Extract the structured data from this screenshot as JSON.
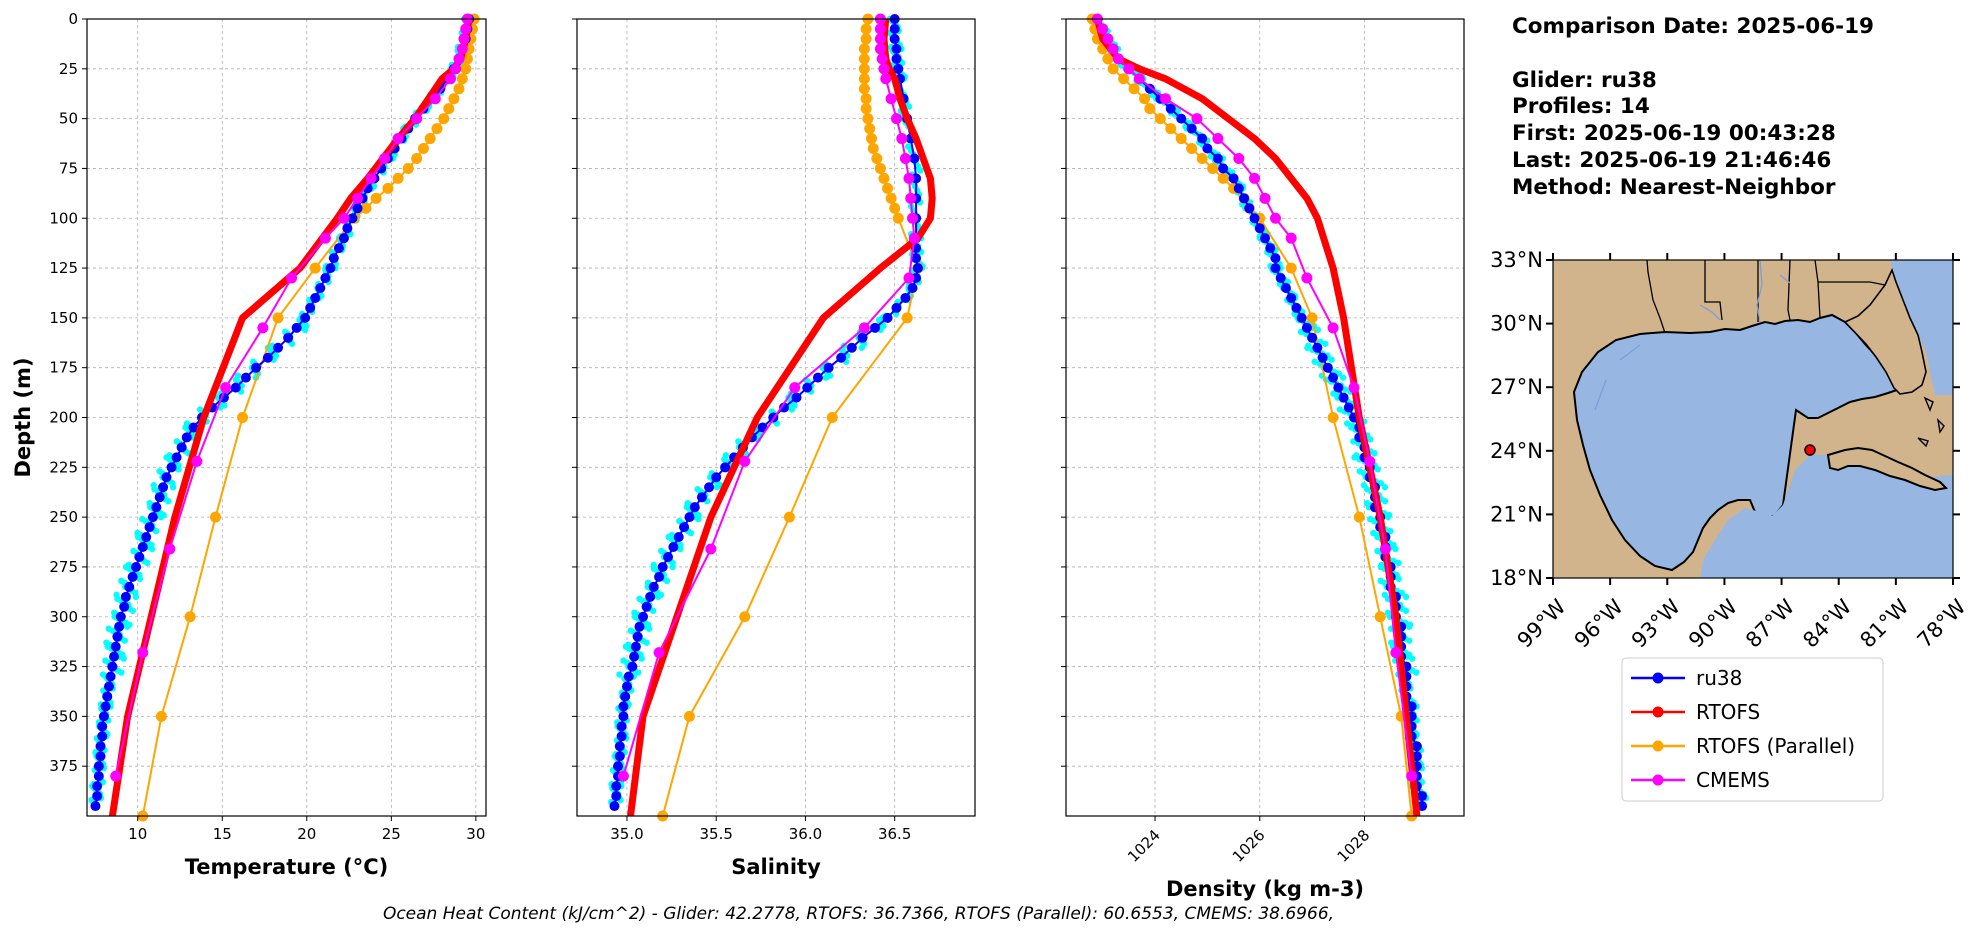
{
  "info": {
    "comparison_date": "Comparison Date: 2025-06-19",
    "glider": "Glider: ru38",
    "profiles": "Profiles: 14",
    "first": "First: 2025-06-19 00:43:28",
    "last": "Last: 2025-06-19 21:46:46",
    "method": "Method: Nearest-Neighbor"
  },
  "footer": "Ocean Heat Content (kJ/cm^2) - Glider: 42.2778,  RTOFS: 36.7366,  RTOFS (Parallel): 60.6553,  CMEMS: 38.6966,",
  "legend": [
    "ru38",
    "RTOFS",
    "RTOFS (Parallel)",
    "CMEMS"
  ],
  "colors": {
    "ru38": "#0000ff",
    "ru38_scatter": "#00ffff",
    "RTOFS": "#ff0000",
    "RTOFS_Parallel": "#ffa500",
    "CMEMS": "#ff00ff",
    "land": "#d2b48c",
    "ocean": "#97b6e1",
    "marker": "#ff0000"
  },
  "chart_data": [
    {
      "type": "line",
      "xlabel": "Temperature (°C)",
      "ylabel": "Depth (m)",
      "xlim": [
        7,
        30.6
      ],
      "ylim": [
        400,
        0
      ],
      "xticks": [
        10,
        15,
        20,
        25,
        30
      ],
      "yticks": [
        0,
        25,
        50,
        75,
        100,
        125,
        150,
        175,
        200,
        225,
        250,
        275,
        300,
        325,
        350,
        375
      ],
      "grid": true,
      "series": [
        {
          "name": "ru38",
          "depth": [
            0,
            5,
            10,
            15,
            20,
            25,
            30,
            35,
            40,
            45,
            50,
            55,
            60,
            65,
            70,
            75,
            80,
            85,
            90,
            95,
            100,
            105,
            110,
            115,
            120,
            125,
            130,
            135,
            140,
            145,
            150,
            155,
            160,
            165,
            170,
            175,
            180,
            185,
            190,
            195,
            200,
            205,
            210,
            215,
            220,
            225,
            230,
            235,
            240,
            245,
            250,
            255,
            260,
            265,
            270,
            275,
            280,
            285,
            290,
            295,
            300,
            305,
            310,
            315,
            320,
            325,
            330,
            335,
            340,
            345,
            350,
            355,
            360,
            365,
            370,
            375,
            380,
            385,
            390,
            395
          ],
          "values": [
            29.6,
            29.5,
            29.4,
            29.2,
            29.0,
            28.7,
            28.3,
            27.9,
            27.4,
            26.9,
            26.4,
            26.0,
            25.6,
            25.2,
            24.8,
            24.4,
            24.0,
            23.6,
            23.3,
            23.0,
            22.7,
            22.4,
            22.2,
            21.9,
            21.6,
            21.4,
            21.1,
            20.8,
            20.5,
            20.2,
            19.9,
            19.4,
            18.9,
            18.3,
            17.7,
            17.0,
            16.4,
            15.8,
            15.1,
            14.4,
            13.8,
            13.3,
            12.9,
            12.6,
            12.3,
            12.0,
            11.7,
            11.5,
            11.3,
            11.1,
            10.9,
            10.7,
            10.5,
            10.3,
            10.1,
            9.9,
            9.7,
            9.5,
            9.3,
            9.2,
            9.0,
            8.9,
            8.8,
            8.7,
            8.6,
            8.5,
            8.4,
            8.3,
            8.2,
            8.1,
            8.0,
            7.9,
            7.9,
            7.8,
            7.8,
            7.7,
            7.7,
            7.6,
            7.6,
            7.5
          ]
        },
        {
          "name": "RTOFS",
          "depth": [
            0,
            10,
            20,
            25,
            30,
            40,
            50,
            60,
            70,
            80,
            90,
            100,
            125,
            150,
            200,
            250,
            300,
            350,
            400
          ],
          "values": [
            29.6,
            29.4,
            29.1,
            28.7,
            28.0,
            27.2,
            26.4,
            25.4,
            24.5,
            23.6,
            22.6,
            21.8,
            19.6,
            16.2,
            13.9,
            12.2,
            10.8,
            9.4,
            8.5
          ]
        },
        {
          "name": "RTOFS (Parallel)",
          "depth": [
            0,
            5,
            10,
            15,
            20,
            25,
            30,
            35,
            40,
            45,
            50,
            55,
            60,
            65,
            70,
            75,
            80,
            85,
            90,
            95,
            100,
            125,
            150,
            200,
            250,
            300,
            350,
            400
          ],
          "values": [
            29.9,
            29.8,
            29.7,
            29.6,
            29.5,
            29.4,
            29.2,
            29.0,
            28.7,
            28.4,
            28.1,
            27.7,
            27.3,
            26.9,
            26.5,
            26.0,
            25.4,
            24.8,
            24.1,
            23.5,
            22.8,
            20.5,
            18.3,
            16.2,
            14.6,
            13.1,
            11.4,
            10.3
          ]
        },
        {
          "name": "CMEMS",
          "depth": [
            0,
            5,
            10,
            15,
            20,
            25,
            30,
            40,
            50,
            60,
            70,
            80,
            90,
            100,
            110,
            130,
            155,
            185,
            222,
            266,
            318,
            380
          ],
          "values": [
            29.5,
            29.4,
            29.3,
            29.2,
            29.0,
            28.8,
            28.5,
            27.6,
            26.5,
            25.4,
            24.6,
            23.8,
            23.0,
            22.2,
            21.1,
            19.1,
            17.4,
            15.2,
            13.5,
            11.9,
            10.3,
            8.7
          ]
        }
      ]
    },
    {
      "type": "line",
      "xlabel": "Salinity",
      "xlim": [
        34.72,
        36.95
      ],
      "ylim": [
        400,
        0
      ],
      "xticks": [
        35.0,
        35.5,
        36.0,
        36.5
      ],
      "yticks": [
        0,
        25,
        50,
        75,
        100,
        125,
        150,
        175,
        200,
        225,
        250,
        275,
        300,
        325,
        350,
        375
      ],
      "grid": true,
      "series": [
        {
          "name": "ru38",
          "depth": [
            0,
            5,
            10,
            15,
            20,
            25,
            30,
            40,
            50,
            60,
            70,
            80,
            90,
            100,
            110,
            115,
            120,
            125,
            130,
            135,
            140,
            145,
            150,
            155,
            160,
            165,
            170,
            175,
            180,
            185,
            190,
            195,
            200,
            205,
            210,
            215,
            220,
            225,
            230,
            235,
            240,
            245,
            250,
            255,
            260,
            265,
            270,
            275,
            280,
            285,
            290,
            295,
            300,
            305,
            310,
            315,
            320,
            325,
            330,
            335,
            340,
            345,
            350,
            355,
            360,
            365,
            370,
            375,
            380,
            385,
            390,
            395
          ],
          "values": [
            36.5,
            36.5,
            36.5,
            36.51,
            36.51,
            36.52,
            36.53,
            36.55,
            36.57,
            36.59,
            36.61,
            36.62,
            36.62,
            36.62,
            36.62,
            36.62,
            36.62,
            36.63,
            36.62,
            36.6,
            36.56,
            36.51,
            36.46,
            36.39,
            36.32,
            36.26,
            36.2,
            36.13,
            36.07,
            36.01,
            35.95,
            35.88,
            35.82,
            35.76,
            35.7,
            35.65,
            35.6,
            35.55,
            35.5,
            35.46,
            35.42,
            35.38,
            35.35,
            35.32,
            35.29,
            35.26,
            35.23,
            35.2,
            35.18,
            35.15,
            35.13,
            35.11,
            35.09,
            35.07,
            35.06,
            35.05,
            35.04,
            35.03,
            35.01,
            35.0,
            34.99,
            34.98,
            34.98,
            34.97,
            34.97,
            34.96,
            34.96,
            34.95,
            34.95,
            34.94,
            34.94,
            34.93
          ]
        },
        {
          "name": "RTOFS",
          "depth": [
            0,
            10,
            20,
            25,
            30,
            40,
            50,
            60,
            70,
            80,
            90,
            100,
            110,
            125,
            150,
            200,
            250,
            300,
            350,
            400
          ],
          "values": [
            36.45,
            36.44,
            36.45,
            36.47,
            36.5,
            36.53,
            36.57,
            36.62,
            36.66,
            36.7,
            36.71,
            36.7,
            36.63,
            36.42,
            36.1,
            35.73,
            35.47,
            35.28,
            35.09,
            35.02
          ]
        },
        {
          "name": "RTOFS (Parallel)",
          "depth": [
            0,
            5,
            10,
            15,
            20,
            25,
            30,
            35,
            40,
            45,
            50,
            55,
            60,
            65,
            70,
            75,
            80,
            85,
            90,
            95,
            100,
            125,
            150,
            200,
            250,
            300,
            350,
            400
          ],
          "values": [
            36.35,
            36.34,
            36.34,
            36.33,
            36.33,
            36.33,
            36.33,
            36.33,
            36.34,
            36.34,
            36.35,
            36.36,
            36.37,
            36.38,
            36.4,
            36.42,
            36.44,
            36.46,
            36.48,
            36.5,
            36.52,
            36.63,
            36.57,
            36.15,
            35.91,
            35.66,
            35.35,
            35.2
          ]
        },
        {
          "name": "CMEMS",
          "depth": [
            0,
            5,
            10,
            15,
            20,
            25,
            30,
            40,
            50,
            60,
            70,
            80,
            90,
            100,
            110,
            130,
            155,
            185,
            222,
            266,
            318,
            380
          ],
          "values": [
            36.42,
            36.42,
            36.42,
            36.42,
            36.43,
            36.44,
            36.45,
            36.48,
            36.51,
            36.54,
            36.56,
            36.58,
            36.59,
            36.6,
            36.61,
            36.58,
            36.33,
            35.94,
            35.66,
            35.47,
            35.18,
            34.98
          ]
        }
      ]
    },
    {
      "type": "line",
      "xlabel": "Density (kg m-3)",
      "xlim": [
        1022.3,
        1029.9
      ],
      "ylim": [
        400,
        0
      ],
      "xticks": [
        1024,
        1026,
        1028
      ],
      "yticks": [
        0,
        25,
        50,
        75,
        100,
        125,
        150,
        175,
        200,
        225,
        250,
        275,
        300,
        325,
        350,
        375
      ],
      "grid": true,
      "series": [
        {
          "name": "ru38",
          "depth": [
            0,
            5,
            10,
            15,
            20,
            25,
            30,
            35,
            40,
            45,
            50,
            55,
            60,
            65,
            70,
            75,
            80,
            85,
            90,
            95,
            100,
            105,
            110,
            115,
            120,
            125,
            130,
            135,
            140,
            145,
            150,
            155,
            160,
            165,
            170,
            175,
            180,
            185,
            190,
            195,
            200,
            205,
            210,
            215,
            220,
            225,
            230,
            235,
            240,
            245,
            250,
            255,
            260,
            265,
            270,
            275,
            280,
            285,
            290,
            295,
            300,
            305,
            310,
            315,
            320,
            325,
            330,
            335,
            340,
            345,
            350,
            355,
            360,
            365,
            370,
            375,
            380,
            385,
            390,
            395
          ],
          "values": [
            1022.9,
            1023.0,
            1023.1,
            1023.2,
            1023.3,
            1023.5,
            1023.7,
            1023.9,
            1024.1,
            1024.3,
            1024.5,
            1024.7,
            1024.9,
            1025.0,
            1025.2,
            1025.3,
            1025.5,
            1025.6,
            1025.7,
            1025.8,
            1025.9,
            1026.0,
            1026.1,
            1026.2,
            1026.3,
            1026.3,
            1026.4,
            1026.5,
            1026.6,
            1026.7,
            1026.8,
            1026.9,
            1027.0,
            1027.1,
            1027.2,
            1027.3,
            1027.4,
            1027.5,
            1027.6,
            1027.7,
            1027.8,
            1027.9,
            1027.9,
            1028.0,
            1028.0,
            1028.1,
            1028.1,
            1028.2,
            1028.2,
            1028.2,
            1028.3,
            1028.3,
            1028.4,
            1028.4,
            1028.4,
            1028.5,
            1028.5,
            1028.5,
            1028.6,
            1028.6,
            1028.6,
            1028.7,
            1028.7,
            1028.7,
            1028.7,
            1028.8,
            1028.8,
            1028.8,
            1028.8,
            1028.9,
            1028.9,
            1028.9,
            1028.9,
            1029.0,
            1029.0,
            1029.0,
            1029.0,
            1029.0,
            1029.1,
            1029.1
          ]
        },
        {
          "name": "RTOFS",
          "depth": [
            0,
            10,
            20,
            25,
            30,
            40,
            50,
            60,
            70,
            80,
            90,
            100,
            125,
            150,
            200,
            250,
            300,
            350,
            400
          ],
          "values": [
            1022.9,
            1023.0,
            1023.3,
            1023.7,
            1024.2,
            1024.9,
            1025.4,
            1025.9,
            1026.3,
            1026.6,
            1026.9,
            1027.1,
            1027.4,
            1027.6,
            1027.9,
            1028.3,
            1028.6,
            1028.8,
            1029.0
          ]
        },
        {
          "name": "RTOFS (Parallel)",
          "depth": [
            0,
            5,
            10,
            15,
            20,
            25,
            30,
            35,
            40,
            45,
            50,
            55,
            60,
            65,
            70,
            75,
            80,
            85,
            90,
            95,
            100,
            125,
            150,
            200,
            250,
            300,
            350,
            400
          ],
          "values": [
            1022.8,
            1022.85,
            1022.9,
            1023.0,
            1023.1,
            1023.2,
            1023.4,
            1023.6,
            1023.8,
            1023.9,
            1024.1,
            1024.3,
            1024.5,
            1024.7,
            1024.9,
            1025.1,
            1025.3,
            1025.5,
            1025.7,
            1025.8,
            1026.0,
            1026.6,
            1027.0,
            1027.4,
            1027.9,
            1028.3,
            1028.7,
            1028.9
          ]
        },
        {
          "name": "CMEMS",
          "depth": [
            0,
            5,
            10,
            15,
            20,
            25,
            30,
            40,
            50,
            60,
            70,
            80,
            90,
            100,
            110,
            130,
            155,
            185,
            222,
            266,
            318,
            380
          ],
          "values": [
            1022.9,
            1023.0,
            1023.1,
            1023.2,
            1023.3,
            1023.5,
            1023.7,
            1024.2,
            1024.8,
            1025.2,
            1025.6,
            1025.9,
            1026.1,
            1026.3,
            1026.6,
            1026.9,
            1027.4,
            1027.8,
            1028.1,
            1028.4,
            1028.6,
            1028.9
          ]
        }
      ]
    }
  ],
  "map": {
    "lat_ticks": [
      "33°N",
      "30°N",
      "27°N",
      "24°N",
      "21°N",
      "18°N"
    ],
    "lon_ticks": [
      "99°W",
      "96°W",
      "93°W",
      "90°W",
      "87°W",
      "84°W",
      "81°W",
      "78°W"
    ],
    "extent_lon": [
      -99,
      -78
    ],
    "extent_lat": [
      18,
      33
    ],
    "glider_position": {
      "lon": -85.4,
      "lat": 24.3
    }
  }
}
